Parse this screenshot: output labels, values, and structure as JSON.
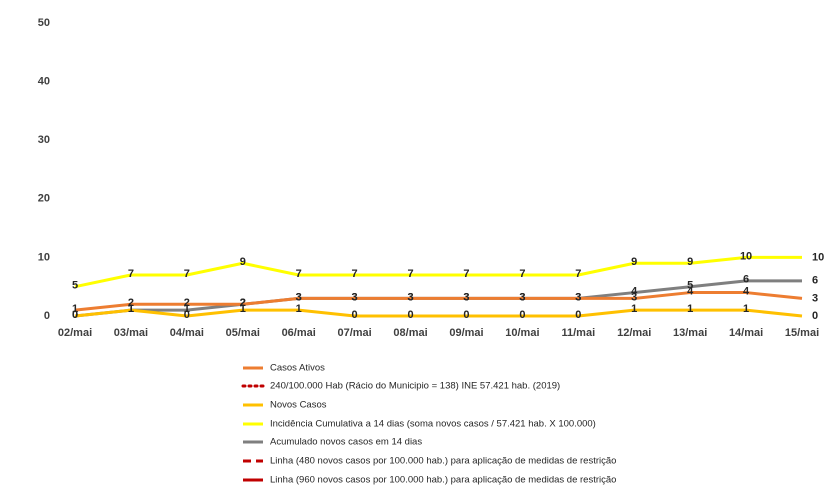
{
  "chart_data": {
    "type": "line",
    "categories": [
      "02/mai",
      "03/mai",
      "04/mai",
      "05/mai",
      "06/mai",
      "07/mai",
      "08/mai",
      "09/mai",
      "10/mai",
      "11/mai",
      "12/mai",
      "13/mai",
      "14/mai",
      "15/mai"
    ],
    "ylim": [
      0,
      50
    ],
    "yticks": [
      0,
      10,
      20,
      30,
      40,
      50
    ],
    "series": [
      {
        "name": "Casos Ativos",
        "color": "#ED7D31",
        "values": [
          1,
          2,
          2,
          2,
          3,
          3,
          3,
          3,
          3,
          3,
          3,
          4,
          4,
          3
        ]
      },
      {
        "name": "240/100.000 Hab (Rácio do Municipio = 138) INE 57.421 hab. (2019)",
        "color": "#C00000",
        "dash": "dotted"
      },
      {
        "name": "Novos Casos",
        "color": "#FFC000",
        "values": [
          0,
          1,
          0,
          1,
          1,
          0,
          0,
          0,
          0,
          0,
          1,
          1,
          1,
          0
        ]
      },
      {
        "name": "Incidência Cumulativa a 14 dias (soma novos casos / 57.421 hab. X 100.000)",
        "color": "#FFFF00",
        "values": [
          5,
          7,
          7,
          9,
          7,
          7,
          7,
          7,
          7,
          7,
          9,
          9,
          10,
          10
        ]
      },
      {
        "name": "Acumulado novos casos em 14 dias",
        "color": "#7F7F7F",
        "values": [
          0,
          1,
          1,
          2,
          3,
          3,
          3,
          3,
          3,
          3,
          4,
          5,
          6,
          6
        ]
      },
      {
        "name": "Linha (480 novos casos por 100.000 hab.) para aplicação de medidas de restrição",
        "color": "#C00000",
        "dash": "dashed"
      },
      {
        "name": "Linha (960 novos casos por 100.000 hab.) para aplicação de medidas de restrição",
        "color": "#C00000",
        "dash": "solid"
      }
    ]
  }
}
